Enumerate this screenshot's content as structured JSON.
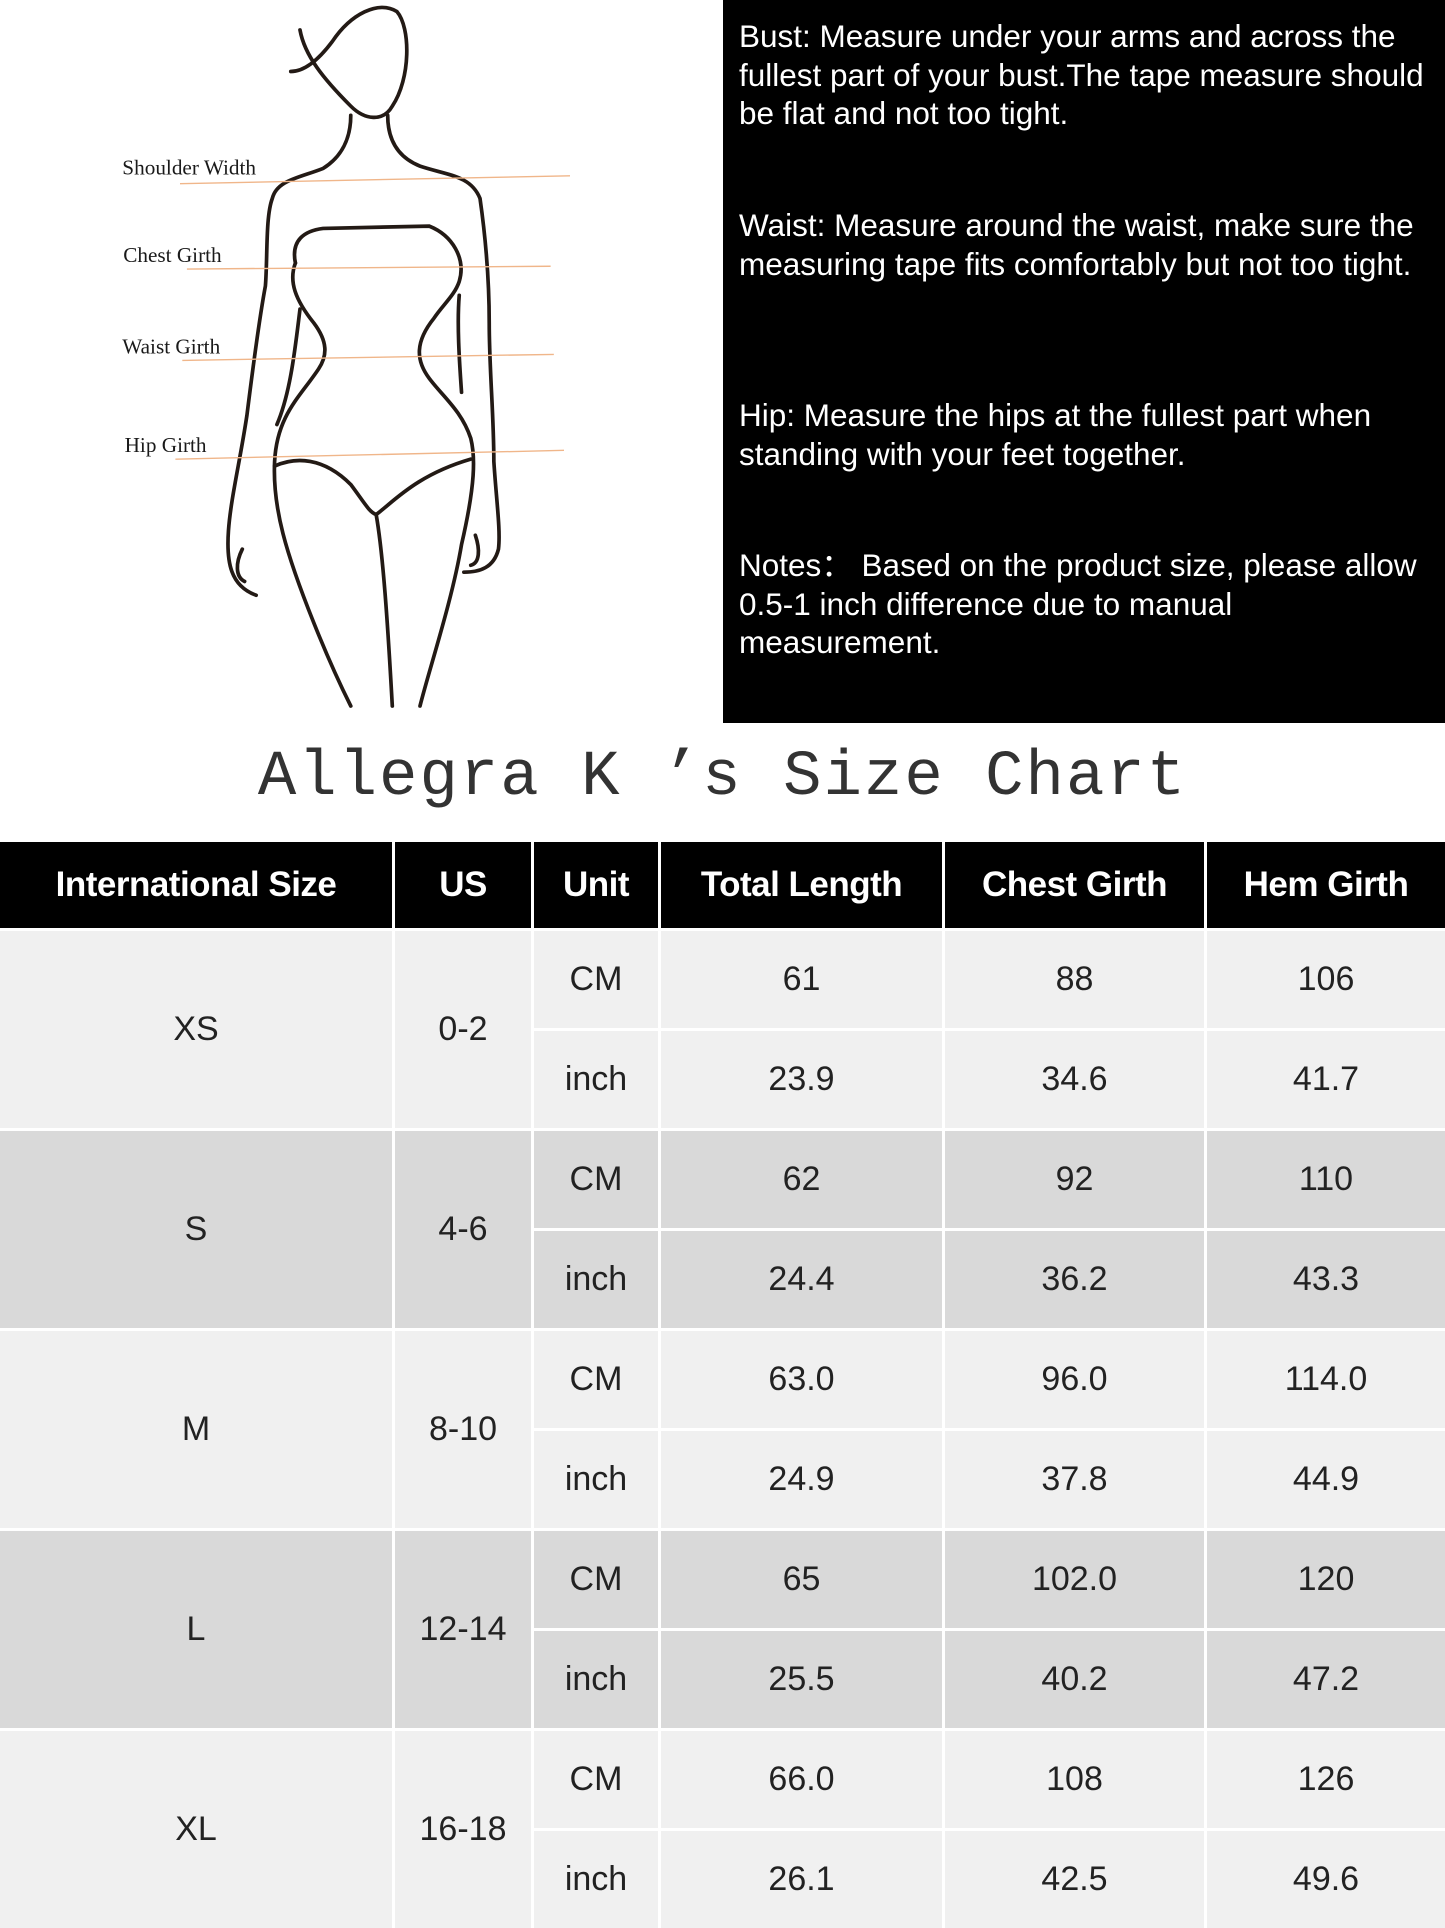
{
  "figure": {
    "labels": [
      "Shoulder Width",
      "Chest Girth",
      "Waist Girth",
      "Hip Girth"
    ],
    "line_color": "#f0b68a"
  },
  "notes": {
    "bust": "Bust: Measure under your arms and across the fullest part of your bust.The tape measure should be flat and not too tight.",
    "waist": "Waist: Measure around the waist, make sure the measuring tape fits comfortably but not too tight.",
    "hip": "Hip: Measure the hips at the fullest part when standing with your feet together.",
    "notes": "Notes：  Based on the product size, please allow 0.5-1 inch difference due to manual measurement."
  },
  "title": "Allegra K ’s Size Chart",
  "table": {
    "headers": [
      "International Size",
      "US",
      "Unit",
      "Total Length",
      "Chest Girth",
      "Hem Girth"
    ],
    "rows": [
      {
        "size": "XS",
        "us": "0-2",
        "cm": [
          "CM",
          "61",
          "88",
          "106"
        ],
        "inch": [
          "inch",
          "23.9",
          "34.6",
          "41.7"
        ]
      },
      {
        "size": "S",
        "us": "4-6",
        "cm": [
          "CM",
          "62",
          "92",
          "110"
        ],
        "inch": [
          "inch",
          "24.4",
          "36.2",
          "43.3"
        ]
      },
      {
        "size": "M",
        "us": "8-10",
        "cm": [
          "CM",
          "63.0",
          "96.0",
          "114.0"
        ],
        "inch": [
          "inch",
          "24.9",
          "37.8",
          "44.9"
        ]
      },
      {
        "size": "L",
        "us": "12-14",
        "cm": [
          "CM",
          "65",
          "102.0",
          "120"
        ],
        "inch": [
          "inch",
          "25.5",
          "40.2",
          "47.2"
        ]
      },
      {
        "size": "XL",
        "us": "16-18",
        "cm": [
          "CM",
          "66.0",
          "108",
          "126"
        ],
        "inch": [
          "inch",
          "26.1",
          "42.5",
          "49.6"
        ]
      }
    ],
    "row_colors": [
      "#f0f0f0",
      "#d9d9d9"
    ]
  }
}
